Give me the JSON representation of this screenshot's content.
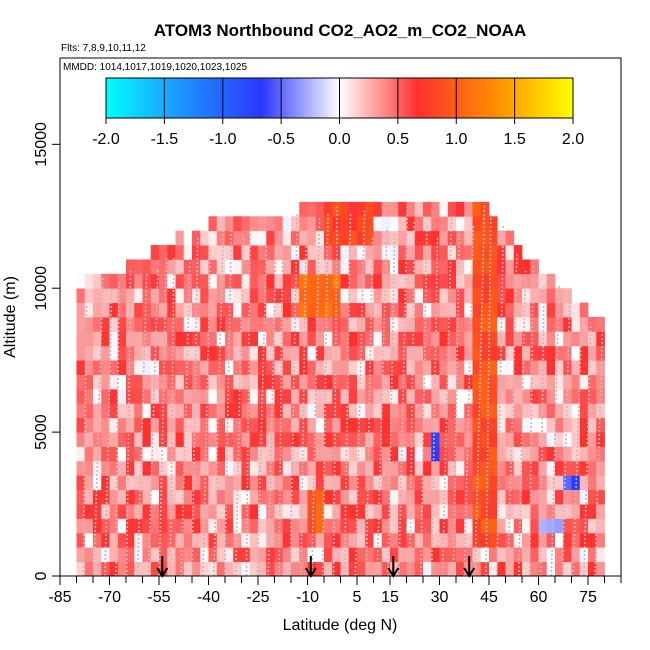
{
  "chart_data": {
    "type": "heatmap",
    "title": "ATOM3 Northbound CO2_AO2_m_CO2_NOAA",
    "flights_text": "Flts: 7,8,9,10,11,12",
    "dates_text": "MMDD: 1014,1017,1019,1020,1023,1025",
    "xlabel": "Latitude (deg N)",
    "ylabel": "Altitude (m)",
    "xlim": [
      -85,
      85
    ],
    "ylim": [
      0,
      18000
    ],
    "x_tick_labels": [
      "-85",
      "-70",
      "-55",
      "-40",
      "-25",
      "-10",
      "5",
      "15",
      "30",
      "45",
      "60",
      "75"
    ],
    "x_tick_values": [
      -85,
      -70,
      -55,
      -40,
      -25,
      -10,
      5,
      15,
      30,
      45,
      60,
      75
    ],
    "y_tick_labels": [
      "0",
      "5000",
      "10000",
      "15000"
    ],
    "y_tick_values": [
      0,
      5000,
      10000,
      15000
    ],
    "colorbar": {
      "min": -2.0,
      "max": 2.0,
      "tick_labels": [
        "-2.0",
        "-1.5",
        "-1.0",
        "-0.5",
        "0.0",
        "0.5",
        "1.0",
        "1.5",
        "2.0"
      ],
      "tick_values": [
        -2.0,
        -1.5,
        -1.0,
        -0.5,
        0.0,
        0.5,
        1.0,
        1.5,
        2.0
      ],
      "colors": [
        "#00ffff",
        "#1e90ff",
        "#2a36ff",
        "#ffffff",
        "#ff3030",
        "#ff8c00",
        "#ffff00"
      ]
    },
    "arrows_latitude": [
      -54,
      -9,
      16,
      39
    ],
    "altitude_bin_m": 500,
    "latitude_bin_deg": 2.5,
    "profile_envelope": [
      {
        "lat": -80,
        "top": 10500
      },
      {
        "lat": -72,
        "top": 10500
      },
      {
        "lat": -65,
        "top": 11000
      },
      {
        "lat": -58,
        "top": 11500
      },
      {
        "lat": -50,
        "top": 12000
      },
      {
        "lat": -40,
        "top": 12500
      },
      {
        "lat": -30,
        "top": 12500
      },
      {
        "lat": -20,
        "top": 12500
      },
      {
        "lat": -12,
        "top": 13000
      },
      {
        "lat": -5,
        "top": 13000
      },
      {
        "lat": 5,
        "top": 13000
      },
      {
        "lat": 15,
        "top": 13000
      },
      {
        "lat": 25,
        "top": 13000
      },
      {
        "lat": 35,
        "top": 13000
      },
      {
        "lat": 45,
        "top": 13000
      },
      {
        "lat": 52,
        "top": 12000
      },
      {
        "lat": 60,
        "top": 11000
      },
      {
        "lat": 70,
        "top": 10000
      },
      {
        "lat": 79,
        "top": 9000
      }
    ],
    "anomaly_regions": [
      {
        "lat0": -12,
        "lat1": 0,
        "alt0": 9000,
        "alt1": 10500,
        "value": 1.1
      },
      {
        "lat0": -10,
        "lat1": -5,
        "alt0": 1500,
        "alt1": 3000,
        "value": 1.0
      },
      {
        "lat0": 40,
        "lat1": 47,
        "alt0": 1000,
        "alt1": 13000,
        "value": 0.9
      },
      {
        "lat0": -5,
        "lat1": 10,
        "alt0": 11500,
        "alt1": 13000,
        "value": 0.8
      },
      {
        "lat0": 27,
        "lat1": 31,
        "alt0": 4000,
        "alt1": 5000,
        "value": -0.7
      },
      {
        "lat0": 67,
        "lat1": 73,
        "alt0": 3000,
        "alt1": 3500,
        "value": -0.6
      },
      {
        "lat0": 60,
        "lat1": 68,
        "alt0": 1500,
        "alt1": 2000,
        "value": -0.4
      }
    ]
  }
}
